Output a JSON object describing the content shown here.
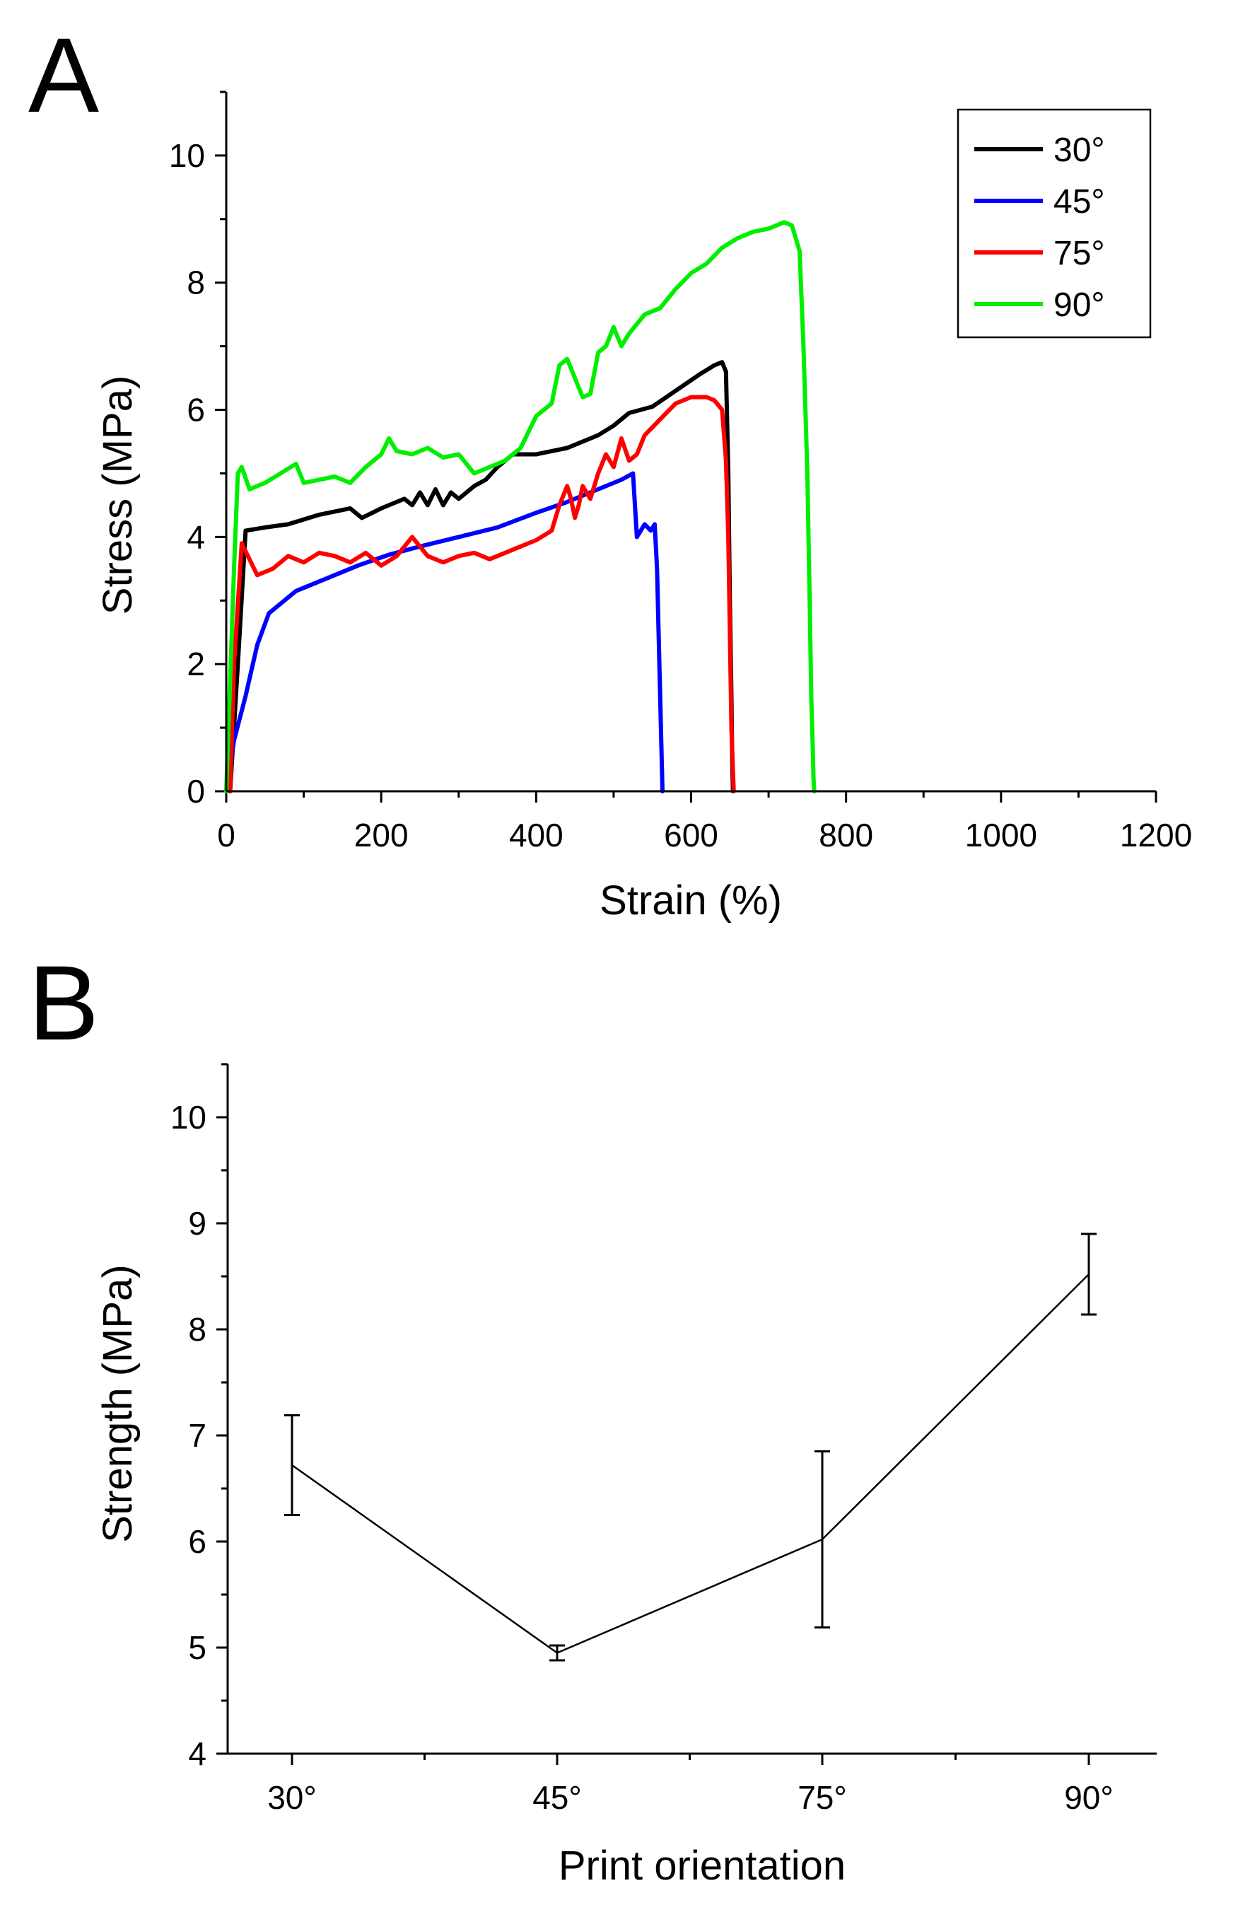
{
  "chart_data": [
    {
      "type": "line",
      "panel_label": "A",
      "xlabel": "Strain (%)",
      "ylabel": "Stress (MPa)",
      "xlim": [
        0,
        1200
      ],
      "ylim": [
        0,
        11
      ],
      "xticks": [
        0,
        200,
        400,
        600,
        800,
        1000,
        1200
      ],
      "yticks": [
        0,
        2,
        4,
        6,
        8,
        10
      ],
      "legend_position": "top-right",
      "series": [
        {
          "name": "30°",
          "color": "#000000",
          "x": [
            5,
            15,
            25,
            50,
            80,
            120,
            160,
            175,
            200,
            230,
            240,
            250,
            260,
            270,
            280,
            290,
            300,
            320,
            335,
            350,
            370,
            400,
            440,
            480,
            500,
            520,
            550,
            580,
            610,
            630,
            640,
            645,
            648,
            650,
            652,
            653,
            654
          ],
          "y": [
            0,
            2,
            4.1,
            4.15,
            4.2,
            4.35,
            4.45,
            4.3,
            4.45,
            4.6,
            4.5,
            4.7,
            4.5,
            4.75,
            4.5,
            4.7,
            4.6,
            4.8,
            4.9,
            5.1,
            5.3,
            5.3,
            5.4,
            5.6,
            5.75,
            5.95,
            6.05,
            6.3,
            6.55,
            6.7,
            6.75,
            6.6,
            5,
            3,
            1.5,
            0.5,
            0
          ]
        },
        {
          "name": "45°",
          "color": "#0000ff",
          "x": [
            0,
            10,
            25,
            40,
            55,
            90,
            130,
            170,
            210,
            250,
            300,
            350,
            400,
            440,
            480,
            510,
            525,
            530,
            540,
            548,
            553,
            556,
            558,
            560,
            562,
            563
          ],
          "y": [
            0,
            0.8,
            1.5,
            2.3,
            2.8,
            3.15,
            3.35,
            3.55,
            3.72,
            3.85,
            4.0,
            4.15,
            4.38,
            4.55,
            4.75,
            4.9,
            5.0,
            4.0,
            4.2,
            4.1,
            4.2,
            3.5,
            2.5,
            1.5,
            0.5,
            0
          ]
        },
        {
          "name": "75°",
          "color": "#ff0000",
          "x": [
            5,
            10,
            20,
            40,
            60,
            80,
            100,
            120,
            140,
            160,
            180,
            200,
            220,
            240,
            260,
            280,
            300,
            320,
            340,
            360,
            380,
            400,
            420,
            430,
            440,
            445,
            450,
            455,
            460,
            470,
            480,
            490,
            500,
            510,
            520,
            530,
            540,
            560,
            580,
            600,
            620,
            630,
            640,
            645,
            648,
            650,
            652,
            654,
            655
          ],
          "y": [
            0,
            2,
            3.9,
            3.4,
            3.5,
            3.7,
            3.6,
            3.75,
            3.7,
            3.6,
            3.75,
            3.55,
            3.7,
            4.0,
            3.7,
            3.6,
            3.7,
            3.75,
            3.65,
            3.75,
            3.85,
            3.95,
            4.1,
            4.5,
            4.8,
            4.6,
            4.3,
            4.5,
            4.8,
            4.6,
            5.0,
            5.3,
            5.1,
            5.55,
            5.2,
            5.3,
            5.6,
            5.85,
            6.1,
            6.2,
            6.2,
            6.15,
            6.0,
            5.2,
            4.0,
            2.5,
            1.0,
            0.3,
            0
          ]
        },
        {
          "name": "90°",
          "color": "#00ee00",
          "x": [
            0,
            10,
            15,
            20,
            30,
            50,
            70,
            90,
            100,
            120,
            140,
            160,
            180,
            200,
            210,
            220,
            240,
            260,
            280,
            300,
            320,
            340,
            360,
            380,
            400,
            420,
            430,
            440,
            450,
            460,
            470,
            480,
            490,
            500,
            510,
            520,
            540,
            560,
            580,
            600,
            620,
            640,
            660,
            680,
            700,
            710,
            720,
            730,
            740,
            745,
            750,
            753,
            755,
            757,
            758,
            759
          ],
          "y": [
            0,
            3.5,
            5.0,
            5.1,
            4.75,
            4.85,
            5.0,
            5.15,
            4.85,
            4.9,
            4.95,
            4.85,
            5.1,
            5.3,
            5.55,
            5.35,
            5.3,
            5.4,
            5.25,
            5.3,
            5.0,
            5.1,
            5.2,
            5.4,
            5.9,
            6.1,
            6.7,
            6.8,
            6.5,
            6.2,
            6.25,
            6.9,
            7.0,
            7.3,
            7.0,
            7.2,
            7.5,
            7.6,
            7.9,
            8.15,
            8.3,
            8.55,
            8.7,
            8.8,
            8.85,
            8.9,
            8.95,
            8.9,
            8.5,
            7.0,
            5.0,
            3.0,
            1.5,
            0.7,
            0.2,
            0
          ]
        }
      ]
    },
    {
      "type": "line",
      "panel_label": "B",
      "xlabel": "Print orientation",
      "ylabel": "Strength (MPa)",
      "ylim": [
        4,
        10.5
      ],
      "yticks": [
        4,
        5,
        6,
        7,
        8,
        9,
        10
      ],
      "categories": [
        "30°",
        "45°",
        "75°",
        "90°"
      ],
      "values": [
        6.72,
        4.95,
        6.02,
        8.52
      ],
      "error_bars": [
        0.47,
        0.07,
        0.83,
        0.38
      ]
    }
  ]
}
